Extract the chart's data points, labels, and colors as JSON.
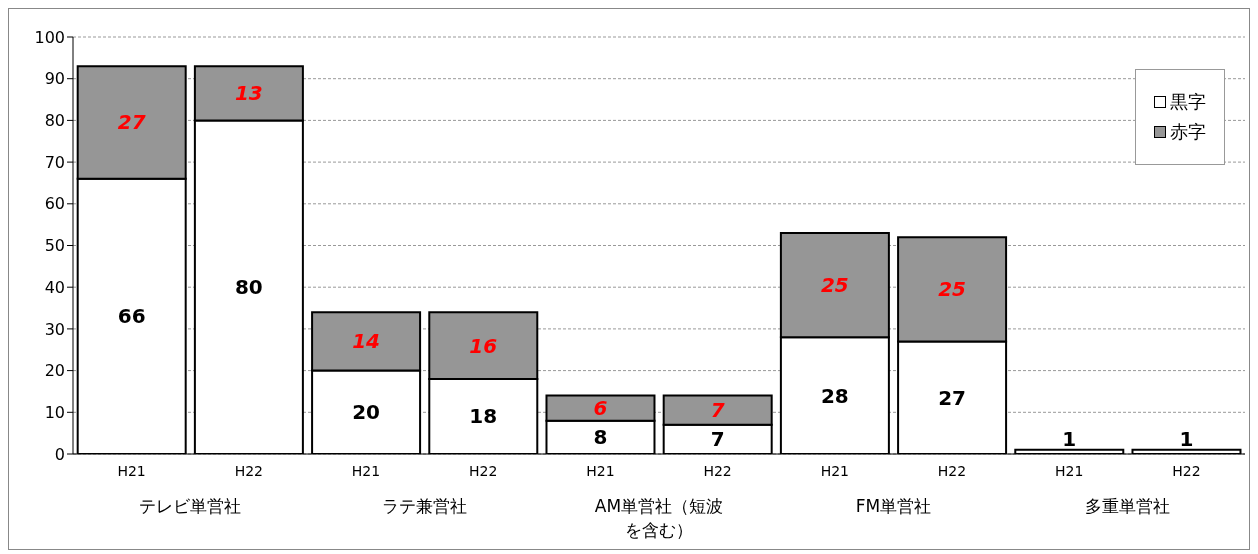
{
  "chart_data": {
    "type": "bar",
    "stacked": true,
    "categories": [
      "H21",
      "H22",
      "H21",
      "H22",
      "H21",
      "H22",
      "H21",
      "H22",
      "H21",
      "H22"
    ],
    "annotations": [
      "テレビ単営社",
      "ラテ兼営社",
      "AM単営社（短波を含む）",
      "FM単営社",
      "多重単営社"
    ],
    "series": [
      {
        "name": "黒字",
        "color": "#ffffff",
        "values": [
          66,
          80,
          20,
          18,
          8,
          7,
          28,
          27,
          1,
          1
        ],
        "value_labels": [
          "66",
          "80",
          "20",
          "18",
          "8",
          "7",
          "28",
          "27",
          "1",
          "1"
        ]
      },
      {
        "name": "赤字",
        "color": "#969696",
        "values": [
          27,
          13,
          14,
          16,
          6,
          7,
          25,
          25,
          0,
          0
        ],
        "value_labels": [
          "27",
          "13",
          "14",
          "16",
          "6",
          "7",
          "25",
          "25",
          null,
          null
        ]
      }
    ],
    "ylim": [
      0,
      100
    ],
    "yticks": [
      0,
      10,
      20,
      30,
      40,
      50,
      60,
      70,
      80,
      90,
      100
    ],
    "grid": "y",
    "legend": "top right"
  }
}
